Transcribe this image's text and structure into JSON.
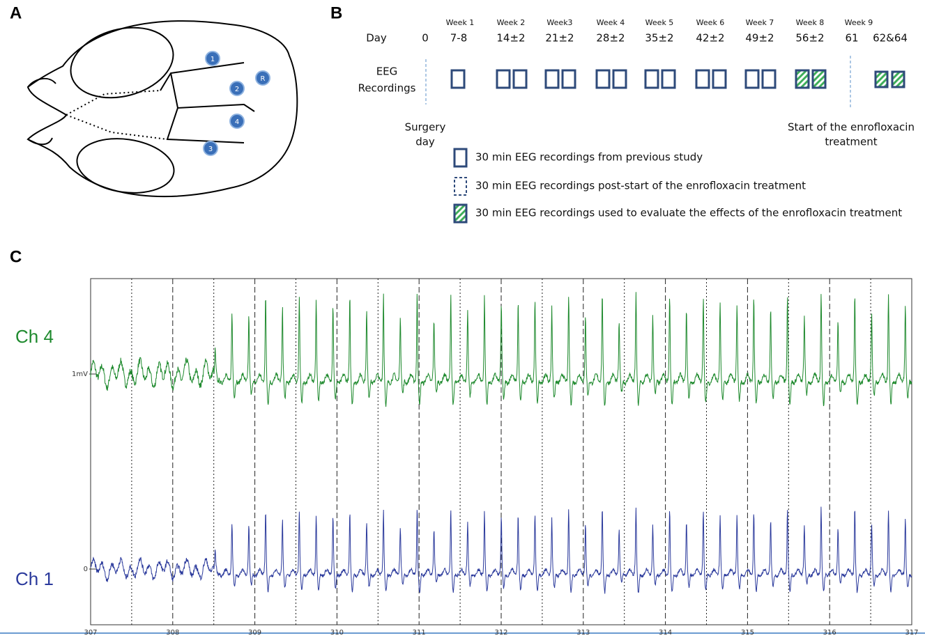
{
  "panels": {
    "a": "A",
    "b": "B",
    "c": "C"
  },
  "skull": {
    "electrodes": [
      "1",
      "2",
      "R",
      "4",
      "3"
    ]
  },
  "timeline": {
    "weeks": [
      "Week 1",
      "Week 2",
      "Week3",
      "Week 4",
      "Week 5",
      "Week 6",
      "Week 7",
      "Week 8",
      "Week 9"
    ],
    "day_label": "Day",
    "days": [
      "0",
      "7-8",
      "14±2",
      "21±2",
      "28±2",
      "35±2",
      "42±2",
      "49±2",
      "56±2",
      "61",
      "62&64"
    ],
    "eeg_label": [
      "EEG",
      "Recordings"
    ],
    "surgery": [
      "Surgery",
      "day"
    ],
    "treatment_start": [
      "Start of the enrofloxacin",
      "treatment"
    ],
    "legend": [
      "30 min EEG recordings from previous study",
      "30 min EEG recordings post-start of the enrofloxacin treatment",
      "30 min EEG recordings used to evaluate the effects of the enrofloxacin treatment"
    ]
  },
  "eeg": {
    "channels": [
      "Ch 4",
      "Ch 1"
    ],
    "scale_labels": [
      "1mV",
      "0"
    ],
    "xlim": [
      307,
      317
    ],
    "xticks": [
      307,
      308,
      309,
      310,
      311,
      312,
      313,
      314,
      315,
      316,
      317
    ]
  }
}
